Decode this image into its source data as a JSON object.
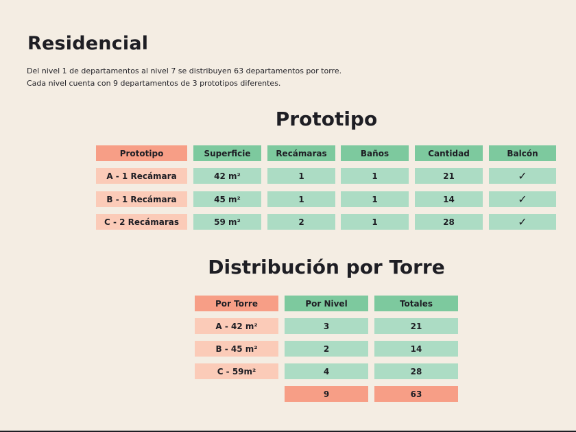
{
  "title": "Residencial",
  "intro": {
    "line1": "Del nivel 1 de departamentos al nivel 7 se distribuyen 63 departamentos por torre.",
    "line2": "Cada nivel cuenta con 9 departamentos de 3 prototipos diferentes."
  },
  "prototipo": {
    "title": "Prototipo",
    "headers": [
      "Prototipo",
      "Superficie",
      "Recámaras",
      "Baños",
      "Cantidad",
      "Balcón"
    ],
    "rows": [
      [
        "A - 1 Recámara",
        "42 m²",
        "1",
        "1",
        "21",
        "✓"
      ],
      [
        "B - 1 Recámara",
        "45 m²",
        "1",
        "1",
        "14",
        "✓"
      ],
      [
        "C - 2 Recámaras",
        "59 m²",
        "2",
        "1",
        "28",
        "✓"
      ]
    ]
  },
  "distribucion": {
    "title": "Distribución por Torre",
    "headers": [
      "Por Torre",
      "Por Nivel",
      "Totales"
    ],
    "rows": [
      [
        "A - 42 m²",
        "3",
        "21"
      ],
      [
        "B - 45 m²",
        "2",
        "14"
      ],
      [
        "C - 59m²",
        "4",
        "28"
      ]
    ],
    "totals": [
      "9",
      "63"
    ]
  },
  "colors": {
    "background": "#f4ede3",
    "header_salmon": "#f79e86",
    "header_green": "#7dc99e",
    "row_salmon": "#fbcbb8",
    "row_green": "#acdcc4"
  }
}
